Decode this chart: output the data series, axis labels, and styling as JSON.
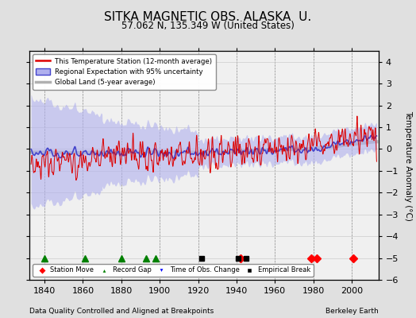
{
  "title": "SITKA MAGNETIC OBS. ALASKA  U.",
  "subtitle": "57.062 N, 135.349 W (United States)",
  "xlim": [
    1832,
    2014
  ],
  "ylim": [
    -6,
    4.5
  ],
  "yticks": [
    -6,
    -5,
    -4,
    -3,
    -2,
    -1,
    0,
    1,
    2,
    3,
    4
  ],
  "xticks": [
    1840,
    1860,
    1880,
    1900,
    1920,
    1940,
    1960,
    1980,
    2000
  ],
  "ylabel": "Temperature Anomaly (°C)",
  "bg_color": "#e0e0e0",
  "plot_bg_color": "#f0f0f0",
  "footer_left": "Data Quality Controlled and Aligned at Breakpoints",
  "footer_right": "Berkeley Earth",
  "legend_entries": [
    "This Temperature Station (12-month average)",
    "Regional Expectation with 95% uncertainty",
    "Global Land (5-year average)"
  ],
  "red_color": "#dd0000",
  "blue_color": "#4444cc",
  "blue_fill_color": "#b0b0ee",
  "gray_color": "#b0b0b0",
  "grid_color": "#cccccc",
  "vline_color": "#888888",
  "station_move_years": [
    1942,
    1979,
    1982,
    2001
  ],
  "record_gap_years": [
    1840,
    1861,
    1880,
    1893,
    1898
  ],
  "time_obs_change_years": [],
  "empirical_break_years": [
    1922,
    1941,
    1945
  ],
  "marker_y": -5.0
}
